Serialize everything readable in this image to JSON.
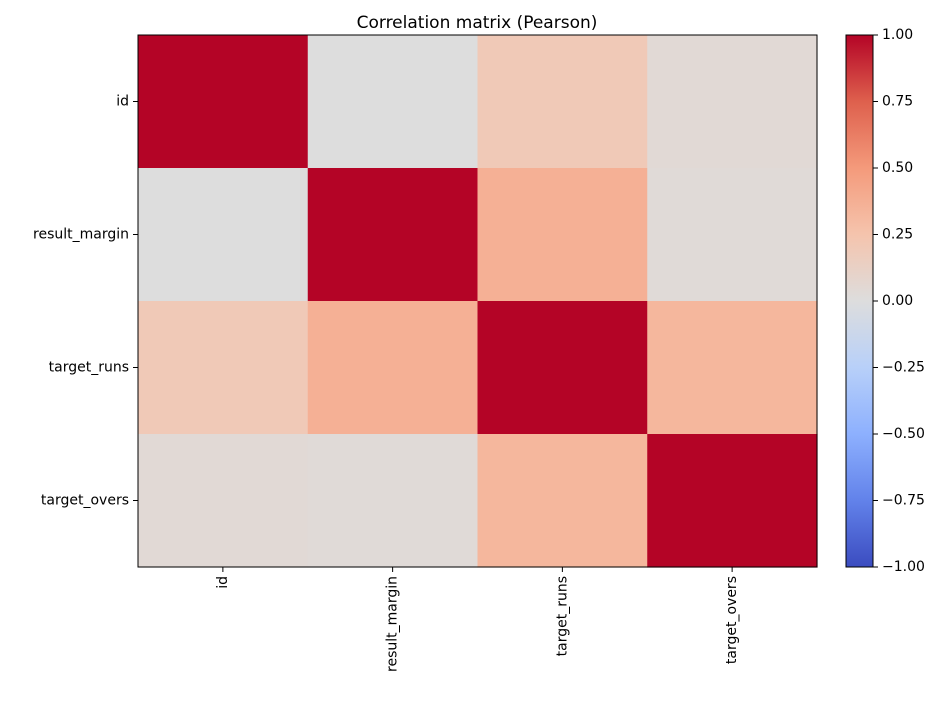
{
  "chart_data": {
    "type": "heatmap",
    "title": "Correlation matrix (Pearson)",
    "rows": [
      "id",
      "result_margin",
      "target_runs",
      "target_overs"
    ],
    "columns": [
      "id",
      "result_margin",
      "target_runs",
      "target_overs"
    ],
    "values": [
      [
        1.0,
        0.0,
        0.2,
        0.04
      ],
      [
        0.0,
        1.0,
        0.37,
        0.03
      ],
      [
        0.2,
        0.37,
        1.0,
        0.33
      ],
      [
        0.04,
        0.03,
        0.33,
        1.0
      ]
    ],
    "colorscale": "coolwarm",
    "vmin": -1.0,
    "vmax": 1.0,
    "colorbar": {
      "ticks": [
        1.0,
        0.75,
        0.5,
        0.25,
        0.0,
        -0.25,
        -0.5,
        -0.75,
        -1.0
      ],
      "tick_labels": [
        "1.00",
        "0.75",
        "0.50",
        "0.25",
        "0.00",
        "−0.25",
        "−0.50",
        "−0.75",
        "−1.00"
      ]
    },
    "grid": false,
    "xtick_rotation": "vertical"
  }
}
